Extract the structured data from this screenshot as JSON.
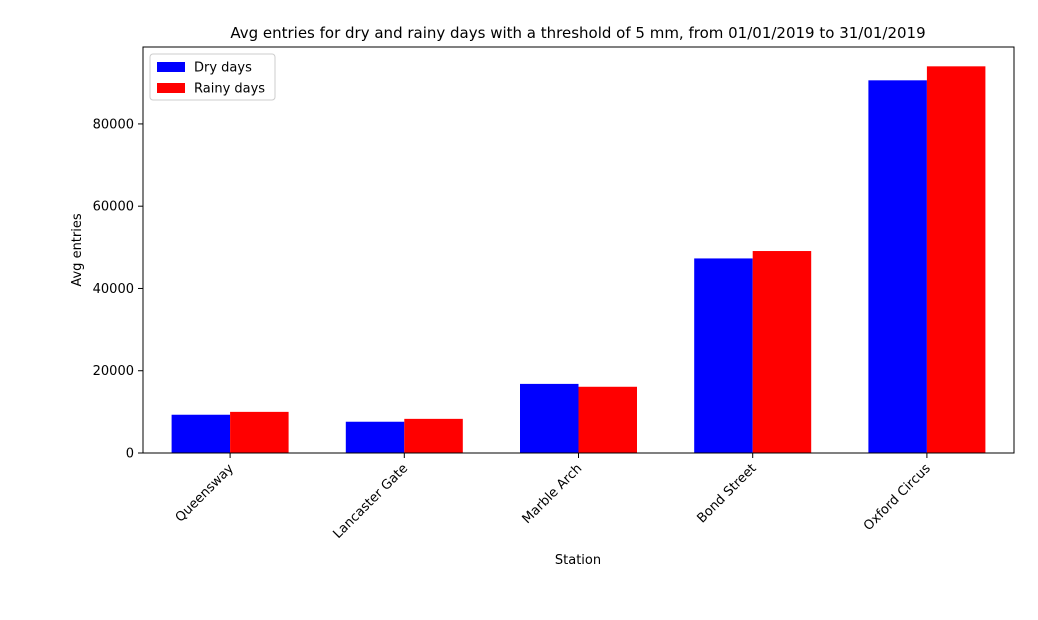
{
  "chart_data": {
    "type": "bar",
    "title": "Avg entries for dry and rainy days with a threshold of 5 mm, from 01/01/2019 to 31/01/2019",
    "xlabel": "Station",
    "ylabel": "Avg entries",
    "categories": [
      "Queensway",
      "Lancaster Gate",
      "Marble Arch",
      "Bond Street",
      "Oxford Circus"
    ],
    "series": [
      {
        "name": "Dry days",
        "color": "#0000ff",
        "values": [
          9300,
          7600,
          16800,
          47300,
          90600
        ]
      },
      {
        "name": "Rainy days",
        "color": "#ff0000",
        "values": [
          10000,
          8300,
          16100,
          49100,
          94000
        ]
      }
    ],
    "ylim": [
      0,
      98700
    ],
    "yticks": [
      0,
      20000,
      40000,
      60000,
      80000
    ],
    "ytick_labels": [
      "0",
      "20000",
      "40000",
      "60000",
      "80000"
    ],
    "grid": false,
    "legend_position": "upper left"
  }
}
